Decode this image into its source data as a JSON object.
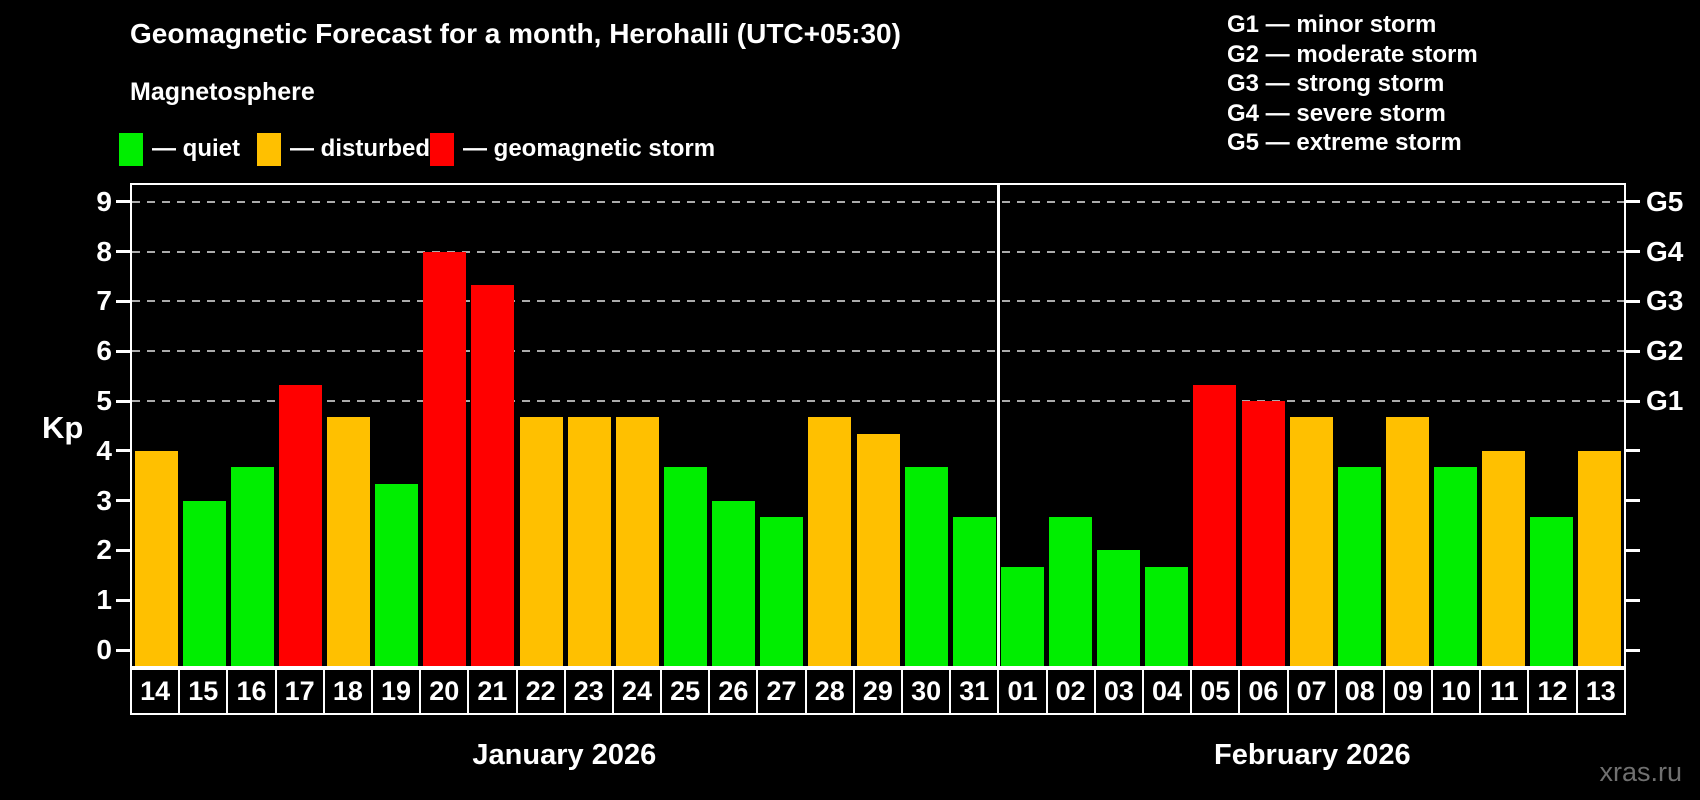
{
  "header": {
    "title": "Geomagnetic Forecast for a month, Herohalli (UTC+05:30)",
    "subtitle": "Magnetosphere",
    "legend": [
      {
        "name": "quiet",
        "label": "— quiet",
        "color": "#00ee00"
      },
      {
        "name": "disturbed",
        "label": "— disturbed",
        "color": "#ffc000"
      },
      {
        "name": "geomagnetic-storm",
        "label": "— geomagnetic storm",
        "color": "#ff0000"
      }
    ],
    "g_legend": [
      "G1 — minor storm",
      "G2 — moderate storm",
      "G3 — strong storm",
      "G4 — severe storm",
      "G5 — extreme storm"
    ]
  },
  "chart_data": {
    "type": "bar",
    "title": "Geomagnetic Forecast for a month, Herohalli (UTC+05:30)",
    "ylabel": "Kp",
    "ylim": [
      0,
      9.7
    ],
    "yticks": [
      0,
      1,
      2,
      3,
      4,
      5,
      6,
      7,
      8,
      9
    ],
    "grid": "dashed horizontal lines at Kp 5..9 (G1..G5)",
    "legend_position": "top",
    "right_axis": [
      {
        "label": "G1",
        "kp": 5
      },
      {
        "label": "G2",
        "kp": 6
      },
      {
        "label": "G3",
        "kp": 7
      },
      {
        "label": "G4",
        "kp": 8
      },
      {
        "label": "G5",
        "kp": 9
      }
    ],
    "series_colors": {
      "quiet": "#00ee00",
      "disturbed": "#ffc000",
      "storm": "#ff0000"
    },
    "months": [
      {
        "label": "January 2026",
        "days": 18
      },
      {
        "label": "February 2026",
        "days": 13
      }
    ],
    "days": [
      {
        "date": "14",
        "kp": 4.0,
        "state": "disturbed"
      },
      {
        "date": "15",
        "kp": 3.0,
        "state": "quiet"
      },
      {
        "date": "16",
        "kp": 3.67,
        "state": "quiet"
      },
      {
        "date": "17",
        "kp": 5.33,
        "state": "storm"
      },
      {
        "date": "18",
        "kp": 4.67,
        "state": "disturbed"
      },
      {
        "date": "19",
        "kp": 3.33,
        "state": "quiet"
      },
      {
        "date": "20",
        "kp": 8.0,
        "state": "storm"
      },
      {
        "date": "21",
        "kp": 7.33,
        "state": "storm"
      },
      {
        "date": "22",
        "kp": 4.67,
        "state": "disturbed"
      },
      {
        "date": "23",
        "kp": 4.67,
        "state": "disturbed"
      },
      {
        "date": "24",
        "kp": 4.67,
        "state": "disturbed"
      },
      {
        "date": "25",
        "kp": 3.67,
        "state": "quiet"
      },
      {
        "date": "26",
        "kp": 3.0,
        "state": "quiet"
      },
      {
        "date": "27",
        "kp": 2.67,
        "state": "quiet"
      },
      {
        "date": "28",
        "kp": 4.67,
        "state": "disturbed"
      },
      {
        "date": "29",
        "kp": 4.33,
        "state": "disturbed"
      },
      {
        "date": "30",
        "kp": 3.67,
        "state": "quiet"
      },
      {
        "date": "31",
        "kp": 2.67,
        "state": "quiet"
      },
      {
        "date": "01",
        "kp": 1.67,
        "state": "quiet"
      },
      {
        "date": "02",
        "kp": 2.67,
        "state": "quiet"
      },
      {
        "date": "03",
        "kp": 2.0,
        "state": "quiet"
      },
      {
        "date": "04",
        "kp": 1.67,
        "state": "quiet"
      },
      {
        "date": "05",
        "kp": 5.33,
        "state": "storm"
      },
      {
        "date": "06",
        "kp": 5.0,
        "state": "storm"
      },
      {
        "date": "07",
        "kp": 4.67,
        "state": "disturbed"
      },
      {
        "date": "08",
        "kp": 3.67,
        "state": "quiet"
      },
      {
        "date": "09",
        "kp": 4.67,
        "state": "disturbed"
      },
      {
        "date": "10",
        "kp": 3.67,
        "state": "quiet"
      },
      {
        "date": "11",
        "kp": 4.0,
        "state": "disturbed"
      },
      {
        "date": "12",
        "kp": 2.67,
        "state": "quiet"
      },
      {
        "date": "13",
        "kp": 4.0,
        "state": "disturbed"
      }
    ]
  },
  "watermark": {
    "text": "xras.ru",
    "color": "#707070"
  }
}
